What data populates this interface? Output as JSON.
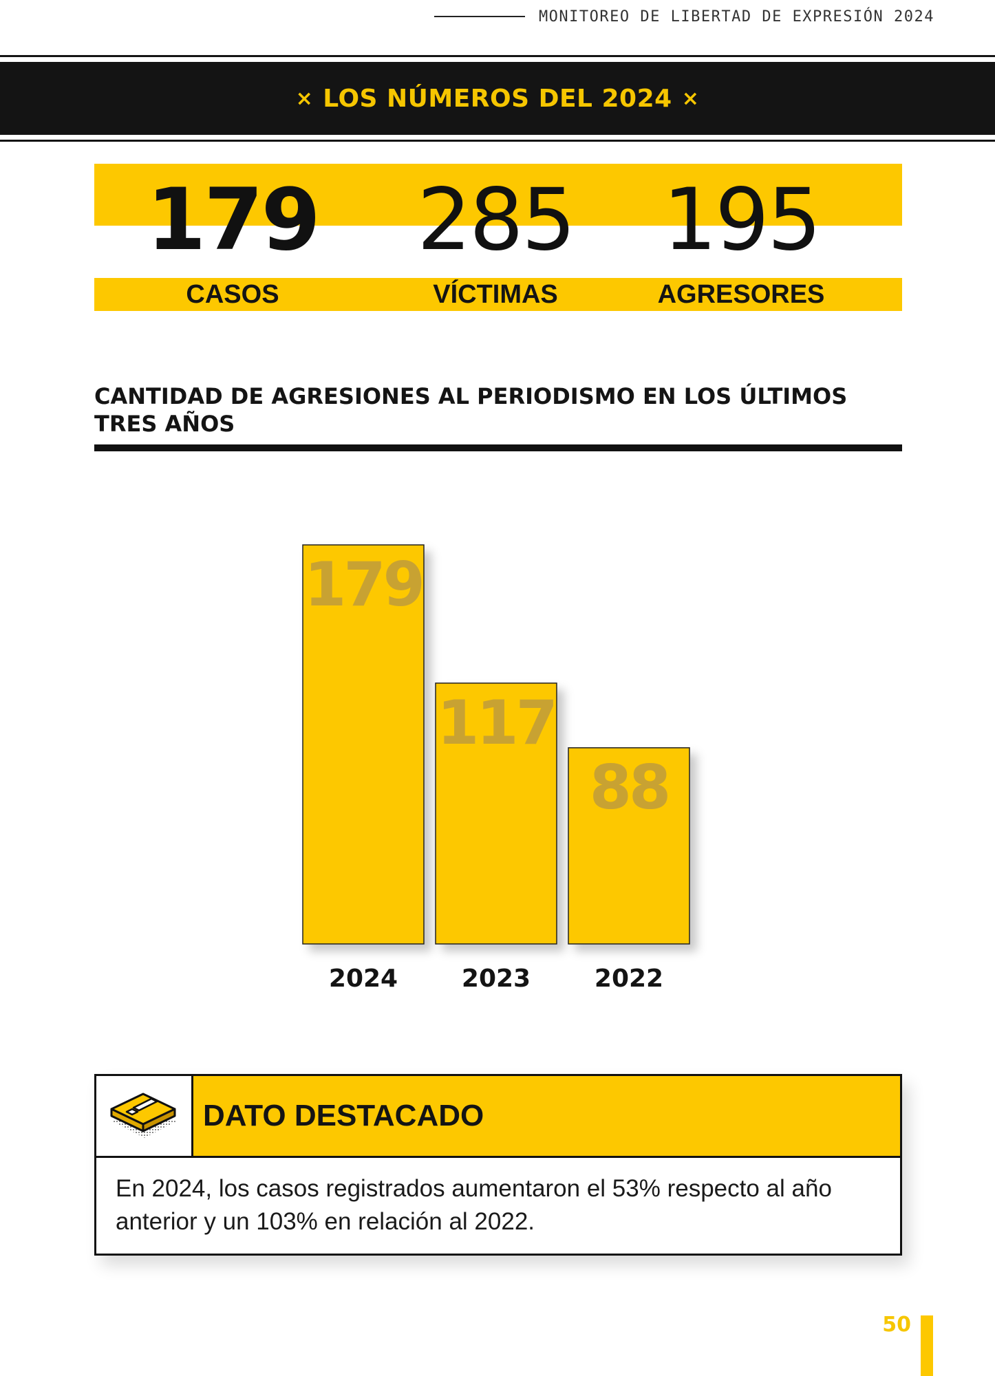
{
  "running_header": "MONITOREO DE LIBERTAD DE EXPRESIÓN 2024",
  "banner": {
    "marker": "×",
    "title": "LOS NÚMEROS DEL 2024"
  },
  "stats": [
    {
      "value": "179",
      "label": "CASOS"
    },
    {
      "value": "285",
      "label": "VÍCTIMAS"
    },
    {
      "value": "195",
      "label": "AGRESORES"
    }
  ],
  "chart_data": {
    "type": "bar",
    "title": "CANTIDAD DE AGRESIONES AL PERIODISMO EN LOS ÚLTIMOS TRES AÑOS",
    "categories": [
      "2024",
      "2023",
      "2022"
    ],
    "values": [
      179,
      117,
      88
    ],
    "xlabel": "",
    "ylabel": "",
    "ylim": [
      0,
      179
    ],
    "grid": false,
    "legend": "none",
    "bar_color": "#fdc800",
    "value_label_color": "#c8a232"
  },
  "callout": {
    "icon": "warning-badge-icon",
    "title": "DATO DESTACADO",
    "text": "En 2024, los casos registrados aumentaron el 53% respecto al año anterior y un 103% en relación al 2022."
  },
  "page_number": "50",
  "colors": {
    "accent": "#fdc800",
    "dark": "#141414"
  }
}
